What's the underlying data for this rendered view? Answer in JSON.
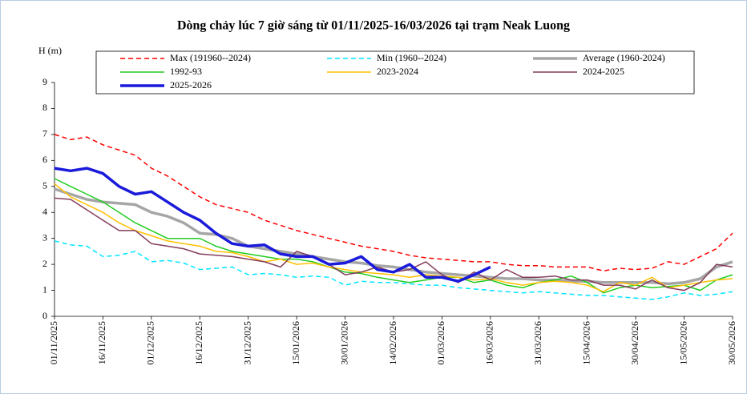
{
  "chart_data": {
    "type": "line",
    "title": "Dòng chảy lúc 7 giờ sáng từ 01/11/2025-16/03/2026 tại trạm Neak Luong",
    "y_label": "H (m)",
    "x": [
      "01/11/2025",
      "06/11/2025",
      "11/11/2025",
      "16/11/2025",
      "21/11/2025",
      "26/11/2025",
      "01/12/2025",
      "06/12/2025",
      "11/12/2025",
      "16/12/2025",
      "21/12/2025",
      "26/12/2025",
      "31/12/2025",
      "05/01/2026",
      "10/01/2026",
      "15/01/2026",
      "20/01/2026",
      "25/01/2026",
      "30/01/2026",
      "04/02/2026",
      "09/02/2026",
      "14/02/2026",
      "19/02/2026",
      "24/02/2026",
      "01/03/2026",
      "06/03/2026",
      "11/03/2026",
      "16/03/2026",
      "21/03/2026",
      "26/03/2026",
      "31/03/2026",
      "05/04/2026",
      "10/04/2026",
      "15/04/2026",
      "20/04/2026",
      "25/04/2026",
      "30/04/2026",
      "05/05/2026",
      "10/05/2026",
      "15/05/2026",
      "20/05/2026",
      "25/05/2026",
      "30/05/2026"
    ],
    "xlim": [
      "01/11/2025",
      "30/05/2026"
    ],
    "xticks": [
      "01/11/2025",
      "16/11/2025",
      "01/12/2025",
      "16/12/2025",
      "31/12/2025",
      "15/01/2026",
      "30/01/2026",
      "14/02/2026",
      "01/03/2026",
      "16/03/2026",
      "31/03/2026",
      "15/04/2026",
      "30/04/2026",
      "15/05/2026",
      "30/05/2026"
    ],
    "ylim": [
      0,
      9
    ],
    "yticks": [
      0,
      1,
      2,
      3,
      4,
      5,
      6,
      7,
      8,
      9
    ],
    "series": [
      {
        "name": "Max (191960--2024)",
        "color": "#ff0000",
        "line_style": "dashed",
        "values": [
          7.0,
          6.8,
          6.9,
          6.6,
          6.4,
          6.2,
          5.7,
          5.4,
          5.0,
          4.6,
          4.3,
          4.15,
          4.0,
          3.7,
          3.5,
          3.3,
          3.15,
          3.0,
          2.85,
          2.7,
          2.6,
          2.5,
          2.35,
          2.25,
          2.2,
          2.15,
          2.1,
          2.1,
          2.0,
          1.95,
          1.95,
          1.9,
          1.9,
          1.9,
          1.75,
          1.85,
          1.8,
          1.85,
          2.1,
          2.0,
          2.3,
          2.6,
          3.2
        ]
      },
      {
        "name": "Min (1960--2024)",
        "color": "#00e5ff",
        "line_style": "dashed",
        "values": [
          2.9,
          2.75,
          2.7,
          2.3,
          2.35,
          2.5,
          2.1,
          2.15,
          2.05,
          1.8,
          1.85,
          1.9,
          1.6,
          1.65,
          1.6,
          1.5,
          1.55,
          1.5,
          1.2,
          1.35,
          1.3,
          1.3,
          1.25,
          1.2,
          1.2,
          1.1,
          1.05,
          1.0,
          0.95,
          0.9,
          0.95,
          0.9,
          0.85,
          0.8,
          0.8,
          0.75,
          0.7,
          0.65,
          0.75,
          0.9,
          0.8,
          0.85,
          0.95
        ]
      },
      {
        "name": "Average (1960-2024)",
        "color": "#a6a6a6",
        "line_style": "thick",
        "values": [
          4.9,
          4.7,
          4.5,
          4.4,
          4.35,
          4.3,
          4.0,
          3.85,
          3.6,
          3.2,
          3.15,
          3.0,
          2.7,
          2.6,
          2.5,
          2.4,
          2.3,
          2.2,
          2.1,
          2.05,
          1.95,
          1.9,
          1.8,
          1.7,
          1.65,
          1.6,
          1.55,
          1.5,
          1.45,
          1.45,
          1.4,
          1.4,
          1.35,
          1.35,
          1.3,
          1.3,
          1.3,
          1.3,
          1.25,
          1.3,
          1.45,
          1.9,
          2.1
        ]
      },
      {
        "name": "1992-93",
        "color": "#22cc22",
        "line_style": "solid",
        "values": [
          5.3,
          5.0,
          4.7,
          4.4,
          4.0,
          3.6,
          3.3,
          3.0,
          3.0,
          3.0,
          2.7,
          2.5,
          2.4,
          2.3,
          2.2,
          2.2,
          2.1,
          1.9,
          1.7,
          1.65,
          1.5,
          1.4,
          1.3,
          1.4,
          1.5,
          1.5,
          1.3,
          1.4,
          1.2,
          1.1,
          1.3,
          1.4,
          1.55,
          1.3,
          0.9,
          1.1,
          1.2,
          1.1,
          1.15,
          1.2,
          1.0,
          1.4,
          1.6
        ]
      },
      {
        "name": "2023-2024",
        "color": "#ffc000",
        "line_style": "solid",
        "values": [
          5.1,
          4.6,
          4.3,
          4.0,
          3.6,
          3.3,
          3.1,
          2.9,
          2.8,
          2.7,
          2.5,
          2.45,
          2.3,
          2.1,
          2.2,
          2.0,
          2.05,
          1.9,
          1.8,
          1.7,
          1.65,
          1.6,
          1.5,
          1.6,
          1.55,
          1.5,
          1.4,
          1.45,
          1.3,
          1.2,
          1.3,
          1.35,
          1.3,
          1.2,
          0.95,
          1.3,
          1.2,
          1.5,
          1.1,
          1.2,
          1.3,
          1.4,
          1.45
        ]
      },
      {
        "name": "2024-2025",
        "color": "#843c5c",
        "line_style": "solid",
        "values": [
          4.55,
          4.5,
          4.1,
          3.7,
          3.3,
          3.3,
          2.8,
          2.7,
          2.6,
          2.4,
          2.35,
          2.3,
          2.2,
          2.1,
          1.9,
          2.5,
          2.3,
          2.0,
          1.6,
          1.7,
          1.9,
          1.7,
          1.8,
          2.1,
          1.6,
          1.3,
          1.7,
          1.4,
          1.8,
          1.5,
          1.5,
          1.55,
          1.4,
          1.4,
          1.2,
          1.2,
          1.05,
          1.4,
          1.1,
          1.0,
          1.3,
          2.0,
          1.9
        ]
      },
      {
        "name": "2025-2026",
        "color": "#1a1adb",
        "line_style": "thick",
        "values": [
          5.7,
          5.6,
          5.7,
          5.5,
          5.0,
          4.7,
          4.8,
          4.4,
          4.0,
          3.7,
          3.2,
          2.8,
          2.7,
          2.75,
          2.4,
          2.3,
          2.3,
          2.0,
          2.05,
          2.3,
          1.8,
          1.7,
          2.0,
          1.5,
          1.5,
          1.35,
          1.6,
          1.9,
          null,
          null,
          null,
          null,
          null,
          null,
          null,
          null,
          null,
          null,
          null,
          null,
          null,
          null,
          null
        ]
      }
    ]
  }
}
